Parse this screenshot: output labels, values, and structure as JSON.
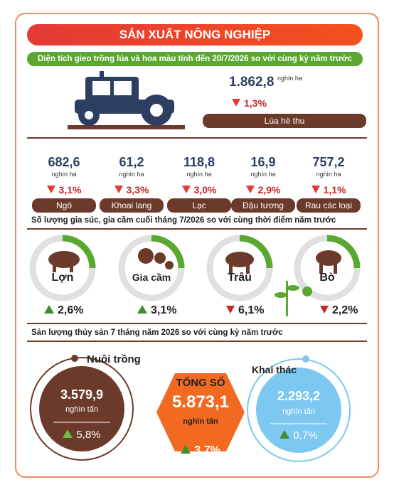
{
  "header": {
    "title": "SẢN XUẤT NÔNG NGHIỆP"
  },
  "crop_section": {
    "title": "Diện tích gieo trồng lúa và hoa màu tính đến 20/7/2026 so với cùng kỳ năm trước",
    "rice": {
      "value": "1.862,8",
      "unit": "nghìn ha",
      "change": "1,3%",
      "label": "Lúa hè thu"
    },
    "crops": [
      {
        "value": "682,6",
        "unit": "nghìn ha",
        "change": "3,1%",
        "label": "Ngô"
      },
      {
        "value": "61,2",
        "unit": "nghìn ha",
        "change": "3,3%",
        "label": "Khoai lang"
      },
      {
        "value": "118,8",
        "unit": "nghìn ha",
        "change": "3,0%",
        "label": "Lạc"
      },
      {
        "value": "16,9",
        "unit": "nghìn ha",
        "change": "2,9%",
        "label": "Đậu tương"
      },
      {
        "value": "757,2",
        "unit": "nghìn ha",
        "change": "1,1%",
        "label": "Rau các loại"
      }
    ]
  },
  "livestock_section": {
    "title": "Số lượng gia súc, gia cầm cuối tháng 7/2026 so với cùng thời điểm năm trước",
    "items": [
      {
        "label": "Lợn",
        "change": "2,6%"
      },
      {
        "label": "Gia cầm",
        "change": "3,1%"
      },
      {
        "label": "Trâu",
        "change": "6,1%"
      },
      {
        "label": "Bò",
        "change": "2,2%"
      }
    ]
  },
  "fishery_section": {
    "title": "Sản lượng thủy sản 7 tháng năm 2026 so với cùng kỳ năm trước",
    "aquaculture": {
      "label": "Nuôi trồng",
      "value": "3.579,9",
      "unit": "nghìn tấn",
      "change": "5,8%"
    },
    "total": {
      "label": "TỔNG SỐ",
      "value": "5.873,1",
      "unit": "nghìn tấn",
      "change": "3,7%"
    },
    "capture": {
      "label": "Khai thác",
      "value": "2.293,2",
      "unit": "nghìn tấn",
      "change": "0,7%"
    }
  }
}
